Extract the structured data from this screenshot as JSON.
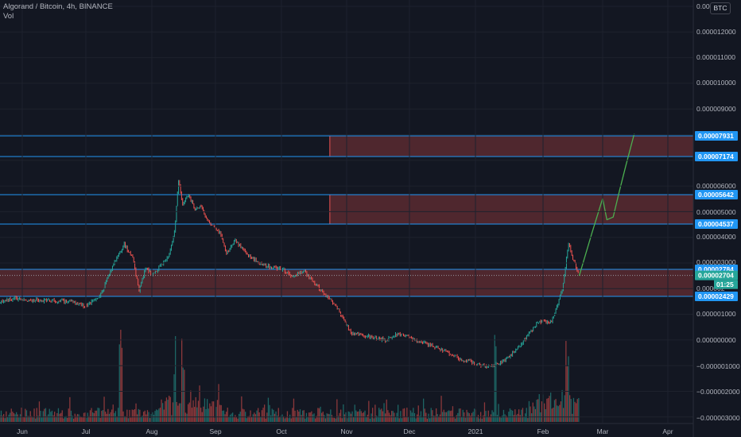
{
  "header": {
    "symbol_line": "Algorand / Bitcoin, 4h, BINANCE",
    "indicator": "Vol"
  },
  "currency_button": "BTC",
  "countdown": "01:25",
  "colors": {
    "background": "#131722",
    "axis_text": "#b2b5be",
    "level_line": "#2962ff",
    "level_tag": "#2196f3",
    "zone_fill": "#5a2a30",
    "up": "#26a69a",
    "down": "#ef5350",
    "projection": "#4caf50",
    "price_line": "#9598a1"
  },
  "chart_data": {
    "type": "candlestick",
    "symbol": "Algorand / Bitcoin",
    "interval": "4h",
    "exchange": "BINANCE",
    "y_axis": {
      "min": -3e-05,
      "max": 1.29e-05,
      "tick_labels": [
        "0.000012000",
        "0.000011000",
        "0.000010000",
        "0.000009000",
        "0.000006000",
        "0.000005000",
        "0.000004000",
        "0.000003000",
        "0.000001000",
        "0.000000000",
        "−0.000001000",
        "−0.000002000",
        "−0.000003000"
      ],
      "tick_values": [
        1.2e-05,
        1.1e-05,
        1e-05,
        9e-06,
        6e-06,
        5e-06,
        4e-06,
        3e-06,
        1e-06,
        0,
        -1e-06,
        -2e-06,
        -3e-06
      ],
      "top_partial_label": "0.0000130",
      "partial_label": "0.000002"
    },
    "x_axis": {
      "tick_labels": [
        "Jun",
        "Jul",
        "Aug",
        "Sep",
        "Oct",
        "Nov",
        "Dec",
        "2021",
        "Feb",
        "Mar",
        "Apr"
      ],
      "tick_dates": [
        "2020-06-01",
        "2020-07-01",
        "2020-08-01",
        "2020-09-01",
        "2020-10-01",
        "2020-11-01",
        "2020-12-01",
        "2021-01-01",
        "2021-02-01",
        "2021-03-01",
        "2021-04-01"
      ]
    },
    "horizontal_levels": [
      {
        "label": "0.00007931",
        "value": 7.931e-05
      },
      {
        "label": "0.00007174",
        "value": 7.174e-05
      },
      {
        "label": "0.00005642",
        "value": 5.642e-05
      },
      {
        "label": "0.00004537",
        "value": 4.537e-05
      },
      {
        "label": "0.00002784",
        "value": 2.784e-05
      },
      {
        "label": "0.00002429",
        "value": 2.429e-05
      }
    ],
    "last_price": {
      "label": "0.00002704",
      "value": 2.704e-05
    },
    "zones": [
      {
        "from": 7.174e-05,
        "to": 7.931e-05,
        "start_date": "2020-10-24"
      },
      {
        "from": 4.537e-05,
        "to": 5.642e-05,
        "start_date": "2020-10-24"
      },
      {
        "from": 2.429e-05,
        "to": 2.784e-05,
        "start_date": "2020-05-14"
      }
    ],
    "price_path": [
      [
        "2020-05-14",
        2.25e-05
      ],
      [
        "2020-05-20",
        2.35e-05
      ],
      [
        "2020-05-28",
        2.4e-05
      ],
      [
        "2020-06-05",
        2.38e-05
      ],
      [
        "2020-06-15",
        2.37e-05
      ],
      [
        "2020-06-25",
        2.36e-05
      ],
      [
        "2020-07-01",
        2.3e-05
      ],
      [
        "2020-07-08",
        2.45e-05
      ],
      [
        "2020-07-13",
        2.8e-05
      ],
      [
        "2020-07-17",
        3.45e-05
      ],
      [
        "2020-07-19",
        3.75e-05
      ],
      [
        "2020-07-23",
        3.2e-05
      ],
      [
        "2020-07-26",
        2.5e-05
      ],
      [
        "2020-07-29",
        2.85e-05
      ],
      [
        "2020-08-01",
        2.7e-05
      ],
      [
        "2020-08-05",
        2.9e-05
      ],
      [
        "2020-08-09",
        3.3e-05
      ],
      [
        "2020-08-12",
        4.2e-05
      ],
      [
        "2020-08-14",
        6.2e-05
      ],
      [
        "2020-08-16",
        5.3e-05
      ],
      [
        "2020-08-19",
        5.6e-05
      ],
      [
        "2020-08-22",
        5.1e-05
      ],
      [
        "2020-08-25",
        5.2e-05
      ],
      [
        "2020-08-28",
        4.7e-05
      ],
      [
        "2020-09-03",
        4.2e-05
      ],
      [
        "2020-09-06",
        3.4e-05
      ],
      [
        "2020-09-10",
        3.9e-05
      ],
      [
        "2020-09-15",
        3.4e-05
      ],
      [
        "2020-09-20",
        3.1e-05
      ],
      [
        "2020-09-25",
        2.9e-05
      ],
      [
        "2020-10-01",
        2.8e-05
      ],
      [
        "2020-10-06",
        2.7e-05
      ],
      [
        "2020-10-12",
        2.75e-05
      ],
      [
        "2020-10-20",
        2.5e-05
      ],
      [
        "2020-10-27",
        2.3e-05
      ],
      [
        "2020-11-03",
        1.95e-05
      ],
      [
        "2020-11-12",
        1.9e-05
      ],
      [
        "2020-11-20",
        1.85e-05
      ],
      [
        "2020-11-26",
        1.95e-05
      ],
      [
        "2020-12-04",
        1.85e-05
      ],
      [
        "2020-12-15",
        1.75e-05
      ],
      [
        "2020-12-25",
        1.6e-05
      ],
      [
        "2021-01-01",
        1.55e-05
      ],
      [
        "2021-01-08",
        1.5e-05
      ],
      [
        "2021-01-15",
        1.6e-05
      ],
      [
        "2021-01-22",
        1.8e-05
      ],
      [
        "2021-01-30",
        2.1e-05
      ],
      [
        "2021-02-05",
        2.1e-05
      ],
      [
        "2021-02-10",
        2.5e-05
      ],
      [
        "2021-02-13",
        3.8e-05
      ],
      [
        "2021-02-15",
        3.2e-05
      ],
      [
        "2021-02-18",
        2.7e-05
      ]
    ],
    "projection_path": [
      [
        "2021-02-18",
        2.7e-05
      ],
      [
        "2021-02-24",
        4.2e-05
      ],
      [
        "2021-03-01",
        5.5e-05
      ],
      [
        "2021-03-03",
        4.7e-05
      ],
      [
        "2021-03-06",
        4.8e-05
      ],
      [
        "2021-03-09",
        5.8e-05
      ],
      [
        "2021-03-12",
        6.8e-05
      ],
      [
        "2021-03-16",
        8e-05
      ]
    ],
    "volume_panel": {
      "series_name": "Vol",
      "spike_dates": [
        "2020-07-17",
        "2020-08-12",
        "2020-08-16",
        "2021-01-10",
        "2021-02-12"
      ]
    }
  }
}
